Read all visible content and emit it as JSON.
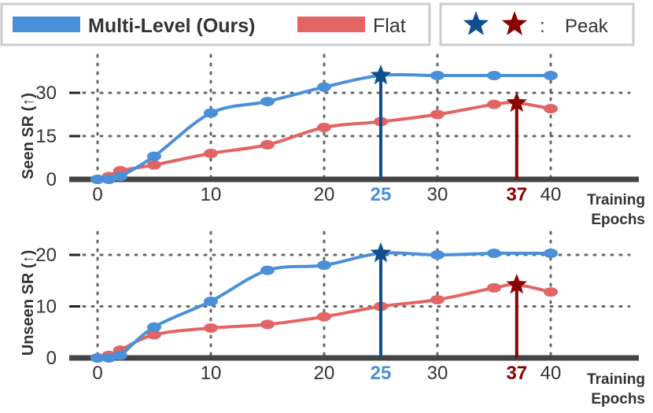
{
  "legend": {
    "multi_label": "Multi-Level (Ours)",
    "flat_label": "Flat",
    "peak_separator": ":",
    "peak_label": "Peak"
  },
  "colors": {
    "multi": "#4a90d9",
    "flat": "#e36464",
    "multi_peak": "#0f4f8f",
    "flat_peak": "#8b0000",
    "axis": "#444444",
    "grid": "#666666"
  },
  "chart_data": [
    {
      "type": "line",
      "ylabel": "Seen SR (↑)",
      "xlabel": "Training Epochs",
      "xlim": [
        0,
        40
      ],
      "ylim": [
        0,
        37
      ],
      "yticks": [
        0,
        15,
        30
      ],
      "xticks": [
        0,
        10,
        20,
        30,
        40
      ],
      "highlight_ticks": [
        25,
        37
      ],
      "grid": true,
      "series": [
        {
          "name": "Multi-Level (Ours)",
          "x": [
            0,
            1,
            2,
            5,
            10,
            15,
            20,
            25,
            30,
            35,
            40
          ],
          "y": [
            0,
            0,
            1,
            8,
            23,
            27,
            32,
            36,
            36,
            36,
            36
          ],
          "peak": {
            "x": 25,
            "y": 36
          }
        },
        {
          "name": "Flat",
          "x": [
            0,
            1,
            2,
            5,
            10,
            15,
            20,
            25,
            30,
            35,
            37,
            40
          ],
          "y": [
            0,
            1,
            3,
            5,
            9,
            12,
            18,
            20,
            22.5,
            26,
            26.5,
            24.5
          ],
          "peak": {
            "x": 37,
            "y": 26.5
          }
        }
      ]
    },
    {
      "type": "line",
      "ylabel": "Unseen SR (↑)",
      "xlabel": "Training Epochs",
      "xlim": [
        0,
        40
      ],
      "ylim": [
        0,
        22
      ],
      "yticks": [
        0,
        10,
        20
      ],
      "xticks": [
        0,
        10,
        20,
        30,
        40
      ],
      "highlight_ticks": [
        25,
        37
      ],
      "grid": true,
      "series": [
        {
          "name": "Multi-Level (Ours)",
          "x": [
            0,
            1,
            2,
            5,
            10,
            15,
            20,
            25,
            30,
            35,
            40
          ],
          "y": [
            0,
            0,
            0.5,
            6,
            11,
            17,
            18,
            20.3,
            20,
            20.3,
            20.3
          ],
          "peak": {
            "x": 25,
            "y": 20.3
          }
        },
        {
          "name": "Flat",
          "x": [
            0,
            1,
            2,
            5,
            10,
            15,
            20,
            25,
            30,
            35,
            37,
            40
          ],
          "y": [
            0,
            0.5,
            1.5,
            4.5,
            5.8,
            6.5,
            8,
            10,
            11.3,
            13.6,
            14.2,
            12.8
          ],
          "peak": {
            "x": 37,
            "y": 14.2
          }
        }
      ]
    }
  ]
}
